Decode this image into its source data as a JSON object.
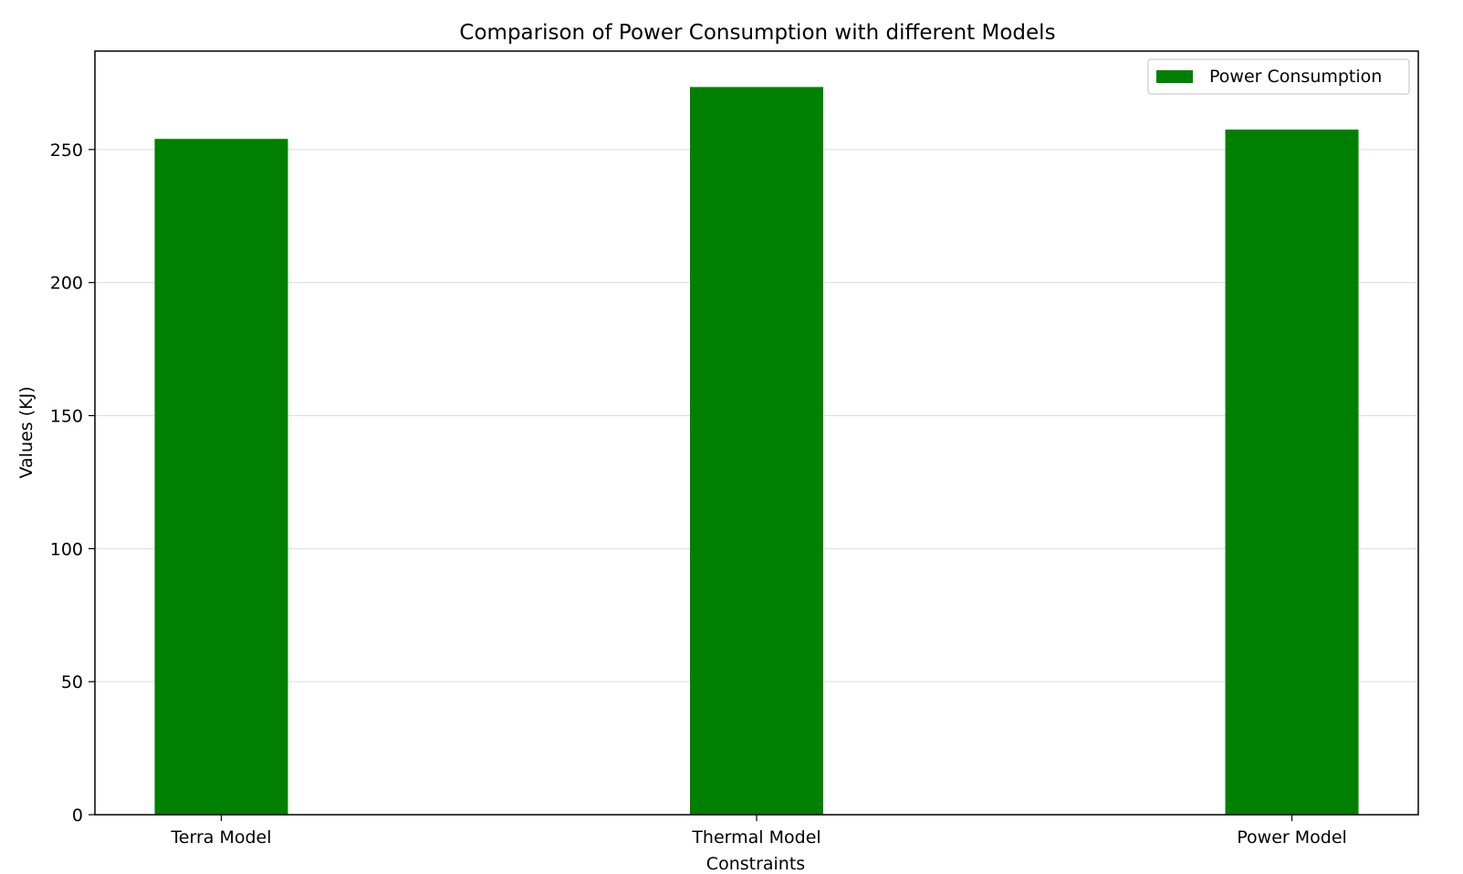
{
  "chart_data": {
    "type": "bar",
    "title": "Comparison of Power Consumption with different Models",
    "xlabel": "Constraints",
    "ylabel": "Values (KJ)",
    "categories": [
      "Terra Model",
      "Thermal Model",
      "Power Model"
    ],
    "series": [
      {
        "name": "Power Consumption",
        "values": [
          254,
          273.5,
          257.5
        ],
        "color": "#008000"
      }
    ],
    "ylim": [
      0,
      287
    ],
    "yticks": [
      0,
      50,
      100,
      150,
      200,
      250
    ],
    "grid": "y",
    "legend_position": "top-right"
  }
}
